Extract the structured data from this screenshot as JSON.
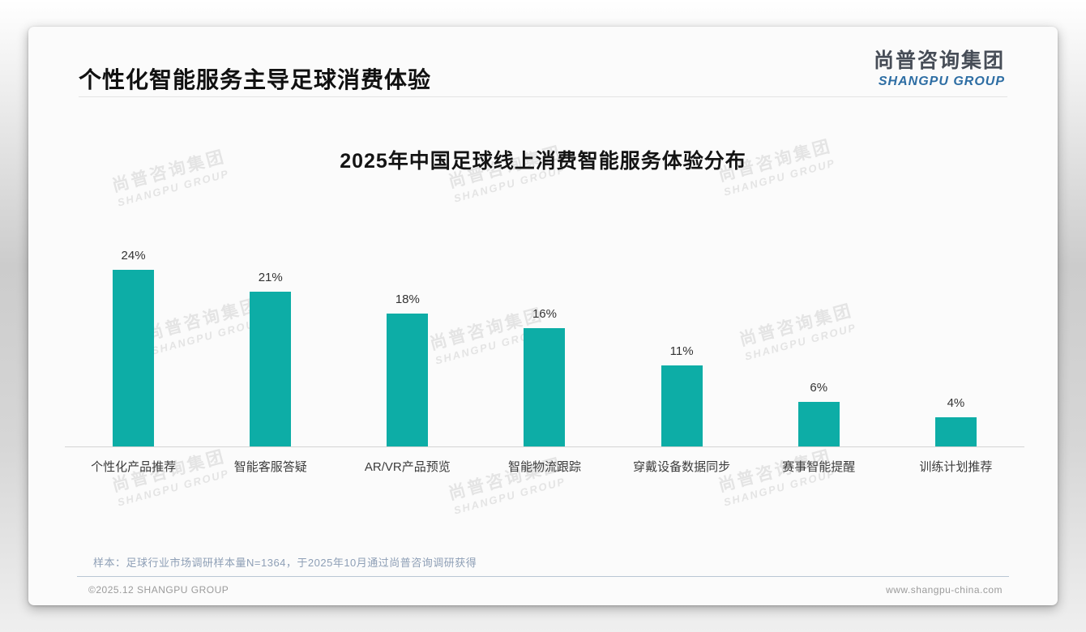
{
  "page": {
    "header": {
      "title": "个性化智能服务主导足球消费体验"
    },
    "logo": {
      "cn": "尚普咨询集团",
      "en": "SHANGPU GROUP",
      "cn_color": "#474d57",
      "en_color": "#2d6da3"
    },
    "watermark": {
      "line1": "尚普咨询集团",
      "line2": "SHANGPU GROUP"
    },
    "footnote": "样本：足球行业市场调研样本量N=1364，于2025年10月通过尚普咨询调研获得",
    "footer": {
      "left": "©2025.12 SHANGPU GROUP",
      "right": "www.shangpu-china.com"
    }
  },
  "chart_data": {
    "type": "bar",
    "title": "2025年中国足球线上消费智能服务体验分布",
    "categories": [
      "个性化产品推荐",
      "智能客服答疑",
      "AR/VR产品预览",
      "智能物流跟踪",
      "穿戴设备数据同步",
      "赛事智能提醒",
      "训练计划推荐"
    ],
    "values": [
      24,
      21,
      18,
      16,
      11,
      6,
      4
    ],
    "value_labels": [
      "24%",
      "21%",
      "18%",
      "16%",
      "11%",
      "6%",
      "4%"
    ],
    "unit": "%",
    "bar_color": "#0dada6",
    "ylim": [
      0,
      26
    ],
    "grid": false,
    "legend": null,
    "xlabel": "",
    "ylabel": ""
  }
}
